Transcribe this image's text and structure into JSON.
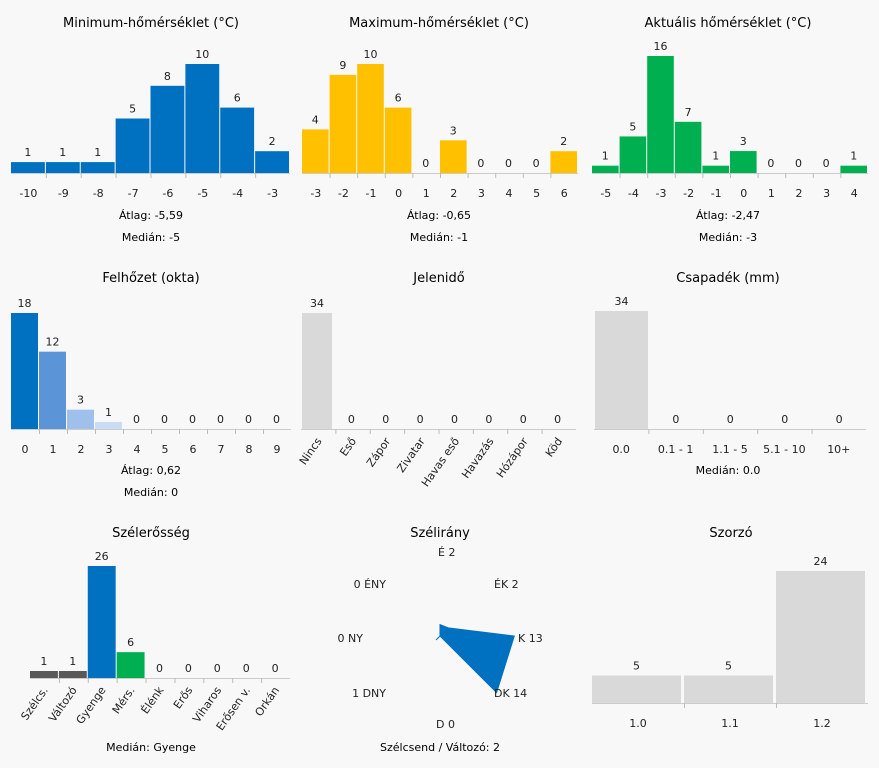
{
  "panels": {
    "min_temp": {
      "title": "Minimum-hőmérséklet (°C)",
      "stats": [
        "Átlag: -5,59",
        "Medián: -5"
      ],
      "chart_data": {
        "type": "bar",
        "categories": [
          "-10",
          "-9",
          "-8",
          "-7",
          "-6",
          "-5",
          "-4",
          "-3"
        ],
        "values": [
          1,
          1,
          1,
          5,
          8,
          10,
          6,
          2
        ],
        "colors": [
          "#0070c0",
          "#0070c0",
          "#0070c0",
          "#0070c0",
          "#0070c0",
          "#0070c0",
          "#0070c0",
          "#0070c0"
        ],
        "ylim": [
          0,
          10
        ]
      }
    },
    "max_temp": {
      "title": "Maximum-hőmérséklet (°C)",
      "stats": [
        "Átlag: -0,65",
        "Medián: -1"
      ],
      "chart_data": {
        "type": "bar",
        "categories": [
          "-3",
          "-2",
          "-1",
          "0",
          "1",
          "2",
          "3",
          "4",
          "5",
          "6"
        ],
        "values": [
          4,
          9,
          10,
          6,
          0,
          3,
          0,
          0,
          0,
          2
        ],
        "colors": [
          "#ffc000",
          "#ffc000",
          "#ffc000",
          "#ffc000",
          "#ffc000",
          "#ffc000",
          "#ffc000",
          "#ffc000",
          "#ffc000",
          "#ffc000"
        ],
        "ylim": [
          0,
          10
        ]
      }
    },
    "act_temp": {
      "title": "Aktuális hőmérséklet (°C)",
      "stats": [
        "Átlag: -2,47",
        "Medián: -3"
      ],
      "chart_data": {
        "type": "bar",
        "categories": [
          "-5",
          "-4",
          "-3",
          "-2",
          "-1",
          "0",
          "1",
          "2",
          "3",
          "4"
        ],
        "values": [
          1,
          5,
          16,
          7,
          1,
          3,
          0,
          0,
          0,
          1
        ],
        "colors": [
          "#00b050",
          "#00b050",
          "#00b050",
          "#00b050",
          "#00b050",
          "#00b050",
          "#00b050",
          "#00b050",
          "#00b050",
          "#00b050"
        ],
        "ylim": [
          0,
          16
        ]
      }
    },
    "cloud": {
      "title": "Felhőzet (okta)",
      "stats": [
        "Átlag: 0,62",
        "Medián: 0"
      ],
      "chart_data": {
        "type": "bar",
        "categories": [
          "0",
          "1",
          "2",
          "3",
          "4",
          "5",
          "6",
          "7",
          "8",
          "9"
        ],
        "values": [
          18,
          12,
          3,
          1,
          0,
          0,
          0,
          0,
          0,
          0
        ],
        "colors": [
          "#0070c0",
          "#5b95d8",
          "#9ec0ea",
          "#c9dcf3",
          "#dddddd",
          "#dddddd",
          "#dddddd",
          "#dddddd",
          "#dddddd",
          "#dddddd"
        ],
        "ylim": [
          0,
          18
        ]
      }
    },
    "weather": {
      "title": "Jelenidő",
      "stats": [],
      "chart_data": {
        "type": "bar",
        "categories": [
          "Nincs",
          "Eső",
          "Zápor",
          "Zivatar",
          "Havas eső",
          "Havazás",
          "Hózápor",
          "Köd"
        ],
        "values": [
          34,
          0,
          0,
          0,
          0,
          0,
          0,
          0
        ],
        "colors": [
          "#d9d9d9",
          "#d9d9d9",
          "#d9d9d9",
          "#d9d9d9",
          "#d9d9d9",
          "#d9d9d9",
          "#d9d9d9",
          "#d9d9d9"
        ],
        "ylim": [
          0,
          34
        ]
      }
    },
    "precip": {
      "title": "Csapadék (mm)",
      "stats": [
        "Medián: 0.0"
      ],
      "chart_data": {
        "type": "bar",
        "categories": [
          "0.0",
          "0.1 - 1",
          "1.1 - 5",
          "5.1 - 10",
          "10+"
        ],
        "values": [
          34,
          0,
          0,
          0,
          0
        ],
        "colors": [
          "#d9d9d9",
          "#d9d9d9",
          "#d9d9d9",
          "#d9d9d9",
          "#d9d9d9"
        ],
        "ylim": [
          0,
          34
        ]
      }
    },
    "wind_speed": {
      "title": "Szélerősség",
      "stats": [
        "Medián: Gyenge"
      ],
      "chart_data": {
        "type": "bar",
        "categories": [
          "Szélcs.",
          "Változó",
          "Gyenge",
          "Mérs.",
          "Élénk",
          "Erős",
          "Viharos",
          "Erősen v.",
          "Orkán"
        ],
        "values": [
          1,
          1,
          26,
          6,
          0,
          0,
          0,
          0,
          0
        ],
        "colors": [
          "#595959",
          "#595959",
          "#0070c0",
          "#00b050",
          "#dddddd",
          "#dddddd",
          "#dddddd",
          "#dddddd",
          "#dddddd"
        ],
        "ylim": [
          0,
          26
        ]
      }
    },
    "wind_dir": {
      "title": "Szélirány",
      "stats": [
        "Szélcsend / Változó: 2"
      ],
      "chart_data": {
        "type": "radar",
        "directions": [
          "É",
          "ÉK",
          "K",
          "DK",
          "D",
          "DNY",
          "NY",
          "ÉNY"
        ],
        "values": [
          2,
          2,
          13,
          14,
          0,
          1,
          0,
          0
        ],
        "color": "#0070c0",
        "rmax": 14
      }
    },
    "multiplier": {
      "title": "Szorzó",
      "stats": [],
      "chart_data": {
        "type": "bar",
        "categories": [
          "1.0",
          "1.1",
          "1.2"
        ],
        "values": [
          5,
          5,
          24
        ],
        "colors": [
          "#d9d9d9",
          "#d9d9d9",
          "#d9d9d9"
        ],
        "ylim": [
          0,
          24
        ]
      }
    }
  }
}
